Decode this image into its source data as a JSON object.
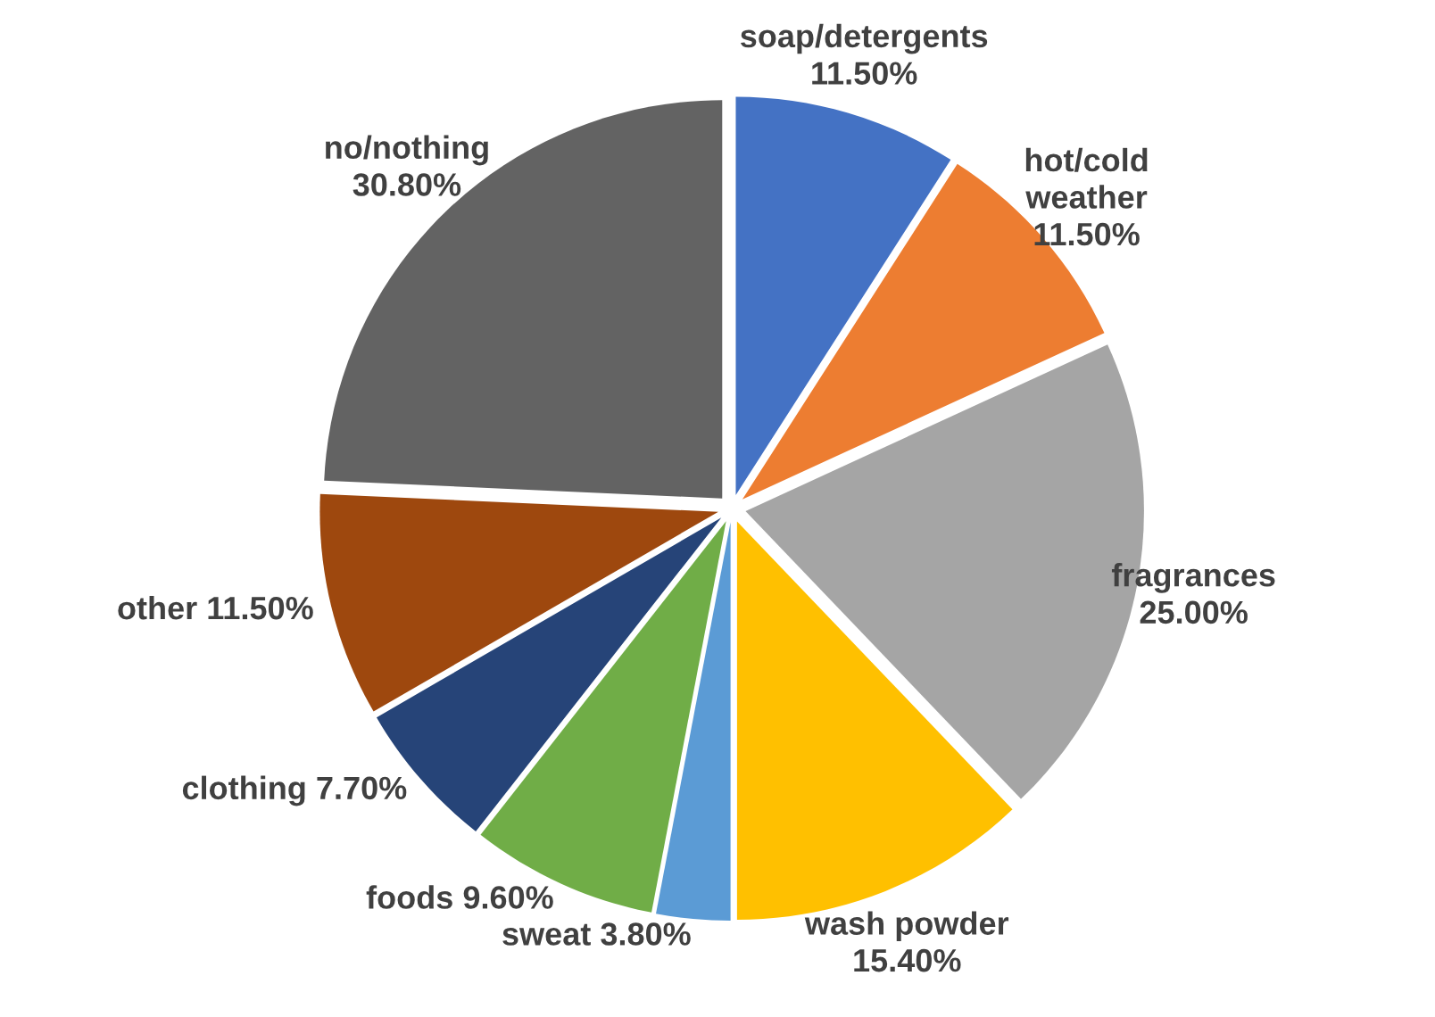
{
  "chart_data": {
    "type": "pie",
    "categories": [
      "soap/detergents",
      "hot/cold\nweather",
      "fragrances",
      "wash powder",
      "sweat",
      "foods",
      "clothing",
      "other",
      "no/nothing"
    ],
    "values": [
      11.5,
      11.5,
      25.0,
      15.4,
      3.8,
      9.6,
      7.7,
      11.5,
      30.8
    ],
    "value_labels": [
      "11.50%",
      "11.50%",
      "25.00%",
      "15.40%",
      "3.80%",
      "9.60%",
      "7.70%",
      "11.50%",
      "30.80%"
    ],
    "colors": [
      "#4472c4",
      "#ed7d31",
      "#a5a5a5",
      "#ffc000",
      "#5b9bd5",
      "#70ad47",
      "#264478",
      "#9e480e",
      "#636363"
    ],
    "legend": false
  }
}
